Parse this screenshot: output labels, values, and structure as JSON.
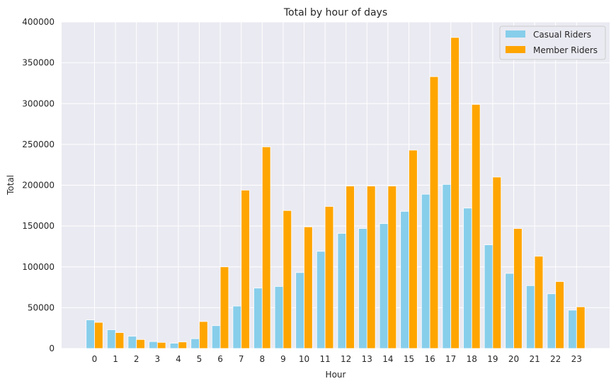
{
  "chart_data": {
    "type": "bar",
    "title": "Total by hour of days",
    "xlabel": "Hour",
    "ylabel": "Total",
    "ylim": [
      0,
      400000
    ],
    "yticks": [
      0,
      50000,
      100000,
      150000,
      200000,
      250000,
      300000,
      350000,
      400000
    ],
    "grid": true,
    "legend_position": "top-right",
    "categories": [
      "0",
      "1",
      "2",
      "3",
      "4",
      "5",
      "6",
      "7",
      "8",
      "9",
      "10",
      "11",
      "12",
      "13",
      "14",
      "15",
      "16",
      "17",
      "18",
      "19",
      "20",
      "21",
      "22",
      "23"
    ],
    "series": [
      {
        "name": "Casual Riders",
        "color": "#87ceeb",
        "values": [
          35000,
          23000,
          15000,
          8500,
          6500,
          12000,
          28000,
          52000,
          74000,
          76000,
          93000,
          119000,
          141000,
          147000,
          153000,
          168000,
          189000,
          201000,
          172000,
          127000,
          92000,
          77000,
          67000,
          47000
        ]
      },
      {
        "name": "Member Riders",
        "color": "#ffa500",
        "values": [
          32000,
          19500,
          11000,
          7500,
          8000,
          33000,
          100000,
          194000,
          247000,
          169000,
          149000,
          174000,
          199000,
          199000,
          199000,
          243000,
          333000,
          381000,
          299000,
          210000,
          147000,
          113000,
          82000,
          51000
        ]
      }
    ]
  }
}
